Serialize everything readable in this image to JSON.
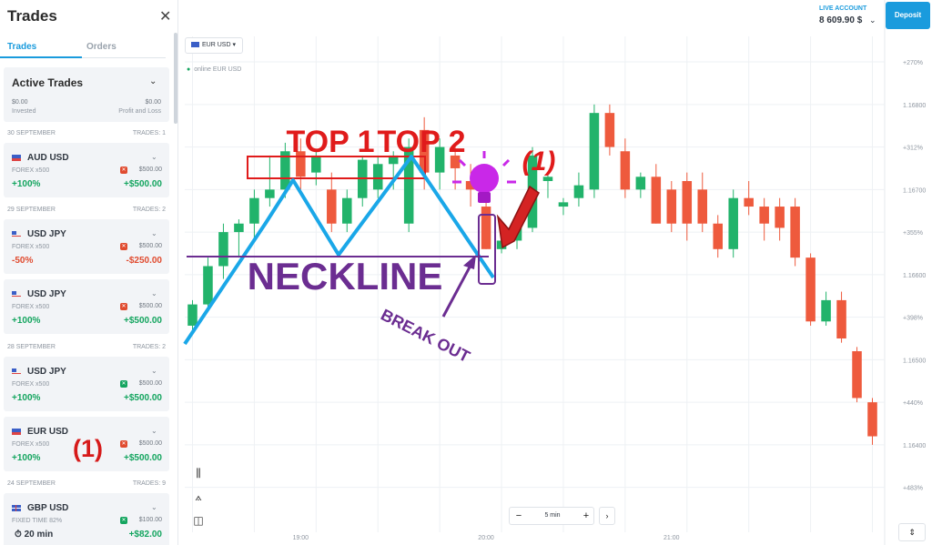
{
  "panel": {
    "title": "Trades",
    "close_icon": "close-icon",
    "tabs": [
      {
        "label": "Trades",
        "active": true
      },
      {
        "label": "Orders",
        "active": false
      }
    ],
    "active_trades": {
      "title": "Active Trades",
      "invested_value": "$0.00",
      "invested_label": "Invested",
      "pnl_value": "$0.00",
      "pnl_label": "Profit and Loss"
    },
    "sections": [
      {
        "date": "30 SEPTEMBER",
        "count": "TRADES: 1"
      },
      {
        "date": "29 SEPTEMBER",
        "count": "TRADES: 2"
      },
      {
        "date": "28 SEPTEMBER",
        "count": "TRADES: 2"
      },
      {
        "date": "24 SEPTEMBER",
        "count": "TRADES: 9"
      }
    ],
    "trades": [
      {
        "pair": "AUD USD",
        "type": "FOREX x500",
        "badge": "red",
        "amount": "$500.00",
        "percent": "+100%",
        "pnl": "+$500.00",
        "flag": "au-us-flag-icon"
      },
      {
        "pair": "USD JPY",
        "type": "FOREX x500",
        "badge": "red",
        "amount": "$500.00",
        "percent": "-50%",
        "pnl": "-$250.00",
        "flag": "us-jp-flag-icon"
      },
      {
        "pair": "USD JPY",
        "type": "FOREX x500",
        "badge": "red",
        "amount": "$500.00",
        "percent": "+100%",
        "pnl": "+$500.00",
        "flag": "us-jp-flag-icon"
      },
      {
        "pair": "USD JPY",
        "type": "FOREX x500",
        "badge": "green",
        "amount": "$500.00",
        "percent": "+100%",
        "pnl": "+$500.00",
        "flag": "us-jp-flag-icon"
      },
      {
        "pair": "EUR USD",
        "type": "FOREX x500",
        "badge": "red",
        "amount": "$500.00",
        "percent": "+100%",
        "pnl": "+$500.00",
        "flag": "eu-us-flag-icon"
      },
      {
        "pair": "GBP USD",
        "type": "FIXED TIME 82%",
        "badge": "green",
        "amount": "$100.00",
        "percent": "20 min",
        "pnl": "+$82.00",
        "flag": "gb-us-flag-icon"
      }
    ],
    "annotation_mark": "(1)"
  },
  "header": {
    "live_label": "LIVE ACCOUNT",
    "balance": "8 609.90 $",
    "deposit_label": "Deposit"
  },
  "chart_header": {
    "pair_label": "EUR USD",
    "online_label": "online EUR USD"
  },
  "toolbar": {
    "timeframe_value": "5 min",
    "minus_label": "−",
    "plus_label": "+",
    "next_label": "›"
  },
  "annotations": {
    "top1": "TOP 1",
    "top2": "TOP 2",
    "neckline": "NECKLINE",
    "breakout": "BREAK OUT",
    "mark": "(1)"
  },
  "colors": {
    "bull": "#22b36b",
    "bear": "#ee5a3d",
    "accent": "#1a9bdd",
    "pattern_line": "#1aa7e8",
    "neckline": "#6b2d91"
  },
  "chart_data": {
    "type": "candlestick",
    "price_axis": [
      {
        "label": "+270%",
        "value": 1.1685
      },
      {
        "label": "1.16800",
        "value": 1.168
      },
      {
        "label": "+312%",
        "value": 1.1675
      },
      {
        "label": "1.16700",
        "value": 1.167
      },
      {
        "label": "+355%",
        "value": 1.1665
      },
      {
        "label": "1.16600",
        "value": 1.166
      },
      {
        "label": "+398%",
        "value": 1.1655
      },
      {
        "label": "1.16500",
        "value": 1.165
      },
      {
        "label": "+440%",
        "value": 1.1645
      },
      {
        "label": "1.16400",
        "value": 1.164
      },
      {
        "label": "+483%",
        "value": 1.1635
      }
    ],
    "time_axis": [
      {
        "label": "19:00",
        "index": 7
      },
      {
        "label": "20:00",
        "index": 19
      },
      {
        "label": "21:00",
        "index": 31
      }
    ],
    "ylim": [
      1.1634,
      1.1688
    ],
    "candles": [
      {
        "o": 1.1654,
        "h": 1.1657,
        "l": 1.1653,
        "c": 1.16565
      },
      {
        "o": 1.16565,
        "h": 1.1662,
        "l": 1.1656,
        "c": 1.1661
      },
      {
        "o": 1.1661,
        "h": 1.1666,
        "l": 1.16595,
        "c": 1.1665
      },
      {
        "o": 1.1665,
        "h": 1.16665,
        "l": 1.1662,
        "c": 1.1666
      },
      {
        "o": 1.1666,
        "h": 1.167,
        "l": 1.1664,
        "c": 1.1669
      },
      {
        "o": 1.1669,
        "h": 1.1674,
        "l": 1.1668,
        "c": 1.167
      },
      {
        "o": 1.167,
        "h": 1.16755,
        "l": 1.1669,
        "c": 1.16745
      },
      {
        "o": 1.16745,
        "h": 1.1676,
        "l": 1.167,
        "c": 1.16715
      },
      {
        "o": 1.1672,
        "h": 1.16745,
        "l": 1.16705,
        "c": 1.1674
      },
      {
        "o": 1.167,
        "h": 1.1672,
        "l": 1.1665,
        "c": 1.1666
      },
      {
        "o": 1.1666,
        "h": 1.167,
        "l": 1.1665,
        "c": 1.1669
      },
      {
        "o": 1.1669,
        "h": 1.1674,
        "l": 1.1668,
        "c": 1.16735
      },
      {
        "o": 1.167,
        "h": 1.1674,
        "l": 1.1669,
        "c": 1.1673
      },
      {
        "o": 1.1673,
        "h": 1.16745,
        "l": 1.167,
        "c": 1.1674
      },
      {
        "o": 1.1666,
        "h": 1.1676,
        "l": 1.1665,
        "c": 1.1675
      },
      {
        "o": 1.1677,
        "h": 1.16785,
        "l": 1.167,
        "c": 1.1672
      },
      {
        "o": 1.1672,
        "h": 1.1676,
        "l": 1.167,
        "c": 1.1675
      },
      {
        "o": 1.1674,
        "h": 1.1675,
        "l": 1.167,
        "c": 1.16725
      },
      {
        "o": 1.1671,
        "h": 1.1673,
        "l": 1.1668,
        "c": 1.167
      },
      {
        "o": 1.1668,
        "h": 1.167,
        "l": 1.1663,
        "c": 1.1663
      },
      {
        "o": 1.1663,
        "h": 1.1665,
        "l": 1.16625,
        "c": 1.1664
      },
      {
        "o": 1.1664,
        "h": 1.1666,
        "l": 1.1663,
        "c": 1.16655
      },
      {
        "o": 1.16655,
        "h": 1.1675,
        "l": 1.1665,
        "c": 1.1674
      },
      {
        "o": 1.1671,
        "h": 1.1672,
        "l": 1.1669,
        "c": 1.16715
      },
      {
        "o": 1.1668,
        "h": 1.1669,
        "l": 1.1667,
        "c": 1.16685
      },
      {
        "o": 1.1669,
        "h": 1.1672,
        "l": 1.1668,
        "c": 1.16705
      },
      {
        "o": 1.167,
        "h": 1.168,
        "l": 1.1669,
        "c": 1.1679
      },
      {
        "o": 1.1679,
        "h": 1.168,
        "l": 1.1674,
        "c": 1.1675
      },
      {
        "o": 1.16745,
        "h": 1.1676,
        "l": 1.1669,
        "c": 1.167
      },
      {
        "o": 1.167,
        "h": 1.1672,
        "l": 1.1669,
        "c": 1.16715
      },
      {
        "o": 1.16715,
        "h": 1.1673,
        "l": 1.1666,
        "c": 1.1666
      },
      {
        "o": 1.167,
        "h": 1.1671,
        "l": 1.1665,
        "c": 1.1666
      },
      {
        "o": 1.1671,
        "h": 1.1672,
        "l": 1.1664,
        "c": 1.1666
      },
      {
        "o": 1.167,
        "h": 1.1672,
        "l": 1.1665,
        "c": 1.1666
      },
      {
        "o": 1.1666,
        "h": 1.1667,
        "l": 1.1662,
        "c": 1.1663
      },
      {
        "o": 1.1663,
        "h": 1.167,
        "l": 1.1662,
        "c": 1.1669
      },
      {
        "o": 1.1669,
        "h": 1.1671,
        "l": 1.1667,
        "c": 1.1668
      },
      {
        "o": 1.1668,
        "h": 1.1669,
        "l": 1.1664,
        "c": 1.1666
      },
      {
        "o": 1.1668,
        "h": 1.1669,
        "l": 1.1664,
        "c": 1.16655
      },
      {
        "o": 1.1668,
        "h": 1.1669,
        "l": 1.1661,
        "c": 1.1662
      },
      {
        "o": 1.1662,
        "h": 1.16625,
        "l": 1.1654,
        "c": 1.16545
      },
      {
        "o": 1.16545,
        "h": 1.1658,
        "l": 1.1654,
        "c": 1.1657
      },
      {
        "o": 1.1657,
        "h": 1.1658,
        "l": 1.1652,
        "c": 1.16525
      },
      {
        "o": 1.1651,
        "h": 1.16515,
        "l": 1.1645,
        "c": 1.16455
      },
      {
        "o": 1.1645,
        "h": 1.16455,
        "l": 1.164,
        "c": 1.1641
      }
    ]
  }
}
